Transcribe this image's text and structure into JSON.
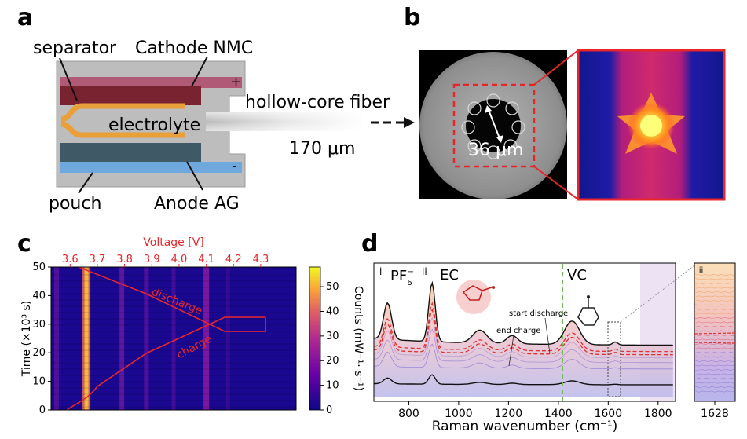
{
  "panels": {
    "a": "a",
    "b": "b",
    "c": "c",
    "d": "d"
  },
  "panel_a": {
    "separator": "separator",
    "cathode": "Cathode NMC",
    "electrolyte": "electrolyte",
    "fiber": "hollow-core fiber",
    "fiber_size": "170 μm",
    "pouch": "pouch",
    "anode": "Anode AG",
    "plus": "+",
    "minus": "-"
  },
  "panel_b": {
    "core_size": "36 μm"
  },
  "panel_c": {
    "top_axis_label": "Voltage [V]",
    "top_ticks": [
      "3.6",
      "3.7",
      "3.8",
      "3.9",
      "4.0",
      "4.1",
      "4.2",
      "4.3"
    ],
    "y_ticks": [
      "0",
      "10",
      "20",
      "30",
      "40",
      "50"
    ],
    "ylabel": "Time (×10³ s)",
    "charge": "charge",
    "discharge": "discharge",
    "colorbar_ticks": [
      "0",
      "10",
      "20",
      "30",
      "40",
      "50"
    ],
    "colorbar_label": "Counts (mW⁻¹· s⁻¹)"
  },
  "panel_d": {
    "marker_i": "i",
    "marker_ii": "ii",
    "marker_iii": "iii",
    "pf6": "PF",
    "pf6_sub": "6",
    "pf6_sup": "−",
    "ec": "EC",
    "vc": "VC",
    "end_charge": "end charge",
    "start_discharge": "start discharge",
    "x_ticks": [
      "800",
      "1000",
      "1200",
      "1400",
      "1600",
      "1800"
    ],
    "inset_tick": "1628",
    "xlabel": "Raman wavenumber (cm⁻¹)"
  },
  "colors": {
    "accent_red": "#e8262a",
    "pouch_gray": "#bdbdbd",
    "cathode": "#7a2330",
    "separator": "#e9a03a",
    "anode": "#3f5a66",
    "current_collector": "#6fa8dc"
  },
  "chart_data": [
    {
      "type": "heatmap",
      "title": "",
      "top_axis": {
        "label": "Voltage [V]",
        "ticks": [
          3.6,
          3.7,
          3.8,
          3.9,
          4.0,
          4.1,
          4.2,
          4.3
        ]
      },
      "ylabel": "Time (×10³ s)",
      "ylim": [
        0,
        50
      ],
      "colorbar": {
        "label": "Counts (mW⁻¹· s⁻¹)",
        "range": [
          0,
          58
        ],
        "ticks": [
          0,
          10,
          20,
          30,
          40,
          50
        ]
      },
      "annotations": [
        "charge",
        "discharge"
      ]
    },
    {
      "type": "line",
      "xlabel": "Raman wavenumber (cm⁻¹)",
      "xlim": [
        660,
        1870
      ],
      "x_ticks": [
        800,
        1000,
        1200,
        1400,
        1600,
        1800
      ],
      "peaks": [
        {
          "label": "PF6−",
          "x": 715
        },
        {
          "label": "EC",
          "x": 893
        },
        {
          "label": "VC",
          "x": 1628
        }
      ],
      "annotations": [
        "end charge",
        "start discharge"
      ]
    }
  ]
}
